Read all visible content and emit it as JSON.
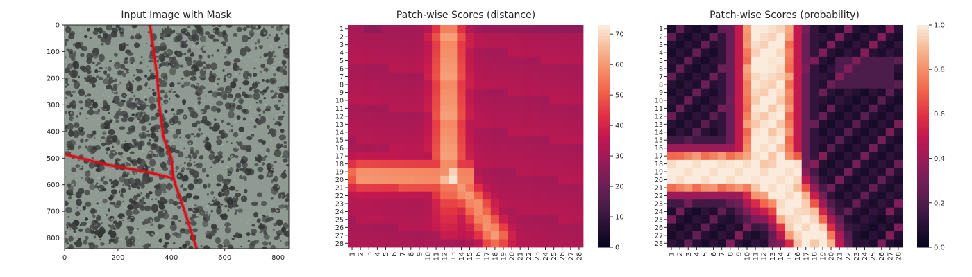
{
  "chart_data": [
    {
      "type": "image",
      "title": "Input Image with Mask",
      "x_ticks": [
        0,
        200,
        400,
        600,
        800
      ],
      "y_ticks": [
        0,
        100,
        200,
        300,
        400,
        500,
        600,
        700,
        800
      ],
      "xlim": [
        0,
        840
      ],
      "ylim": [
        0,
        840
      ],
      "mask_paths": [
        [
          [
            320,
            0
          ],
          [
            345,
            180
          ],
          [
            355,
            300
          ],
          [
            370,
            420
          ],
          [
            400,
            500
          ],
          [
            405,
            560
          ],
          [
            415,
            600
          ],
          [
            450,
            700
          ],
          [
            495,
            840
          ]
        ],
        [
          [
            0,
            485
          ],
          [
            160,
            525
          ],
          [
            300,
            550
          ],
          [
            405,
            575
          ]
        ]
      ],
      "colors": {
        "background": "#8e9a92",
        "speckle": "#3c3f3e",
        "mask": "#d6101b"
      }
    },
    {
      "type": "heatmap",
      "title": "Patch-wise Scores (distance)",
      "rows": 28,
      "cols": 28,
      "row_labels": [
        "1",
        "2",
        "3",
        "4",
        "5",
        "6",
        "7",
        "8",
        "9",
        "10",
        "11",
        "12",
        "13",
        "14",
        "15",
        "16",
        "17",
        "18",
        "19",
        "20",
        "21",
        "22",
        "23",
        "24",
        "25",
        "26",
        "27",
        "28"
      ],
      "col_labels": [
        "1",
        "2",
        "3",
        "4",
        "5",
        "6",
        "7",
        "8",
        "9",
        "10",
        "11",
        "12",
        "13",
        "14",
        "15",
        "16",
        "17",
        "18",
        "19",
        "20",
        "21",
        "22",
        "23",
        "24",
        "25",
        "26",
        "27",
        "28"
      ],
      "vmin": 0,
      "vmax": 73,
      "colorbar_ticks": [
        0,
        10,
        20,
        30,
        40,
        50,
        60,
        70
      ],
      "colormap": "rocket",
      "structure": {
        "vertical_band": {
          "center_col": 12.5,
          "rows": [
            1,
            28
          ],
          "peak": 62
        },
        "horizontal_band": {
          "center_row": 19.5,
          "cols": [
            1,
            14
          ],
          "peak": 60
        },
        "diagonal_band": {
          "from": [
            19.5,
            13
          ],
          "to": [
            27,
            18
          ],
          "peak": 60
        },
        "max_cell": {
          "row": 20,
          "col": 13,
          "value": 72
        },
        "background": 33
      }
    },
    {
      "type": "heatmap",
      "title": "Patch-wise Scores (probability)",
      "rows": 28,
      "cols": 28,
      "row_labels": [
        "1",
        "2",
        "3",
        "4",
        "5",
        "6",
        "7",
        "8",
        "9",
        "10",
        "11",
        "12",
        "13",
        "14",
        "15",
        "16",
        "17",
        "18",
        "19",
        "20",
        "21",
        "22",
        "23",
        "24",
        "25",
        "26",
        "27",
        "28"
      ],
      "col_labels": [
        "1",
        "2",
        "3",
        "4",
        "5",
        "6",
        "7",
        "8",
        "9",
        "10",
        "11",
        "12",
        "13",
        "14",
        "15",
        "16",
        "17",
        "18",
        "19",
        "20",
        "21",
        "22",
        "23",
        "24",
        "25",
        "26",
        "27",
        "28"
      ],
      "vmin": 0,
      "vmax": 1,
      "colorbar_ticks": [
        "0.0",
        "0.2",
        "0.4",
        "0.6",
        "0.8",
        "1.0"
      ],
      "colormap": "rocket",
      "structure": {
        "vertical_band": {
          "center_col": 12.5,
          "rows": [
            1,
            28
          ],
          "peak": 1.0
        },
        "horizontal_band": {
          "center_row": 19,
          "cols": [
            1,
            15
          ],
          "peak": 1.0
        },
        "diagonal_band": {
          "from": [
            19,
            13
          ],
          "to": [
            28,
            18
          ],
          "peak": 1.0
        },
        "background": 0.05
      }
    }
  ]
}
